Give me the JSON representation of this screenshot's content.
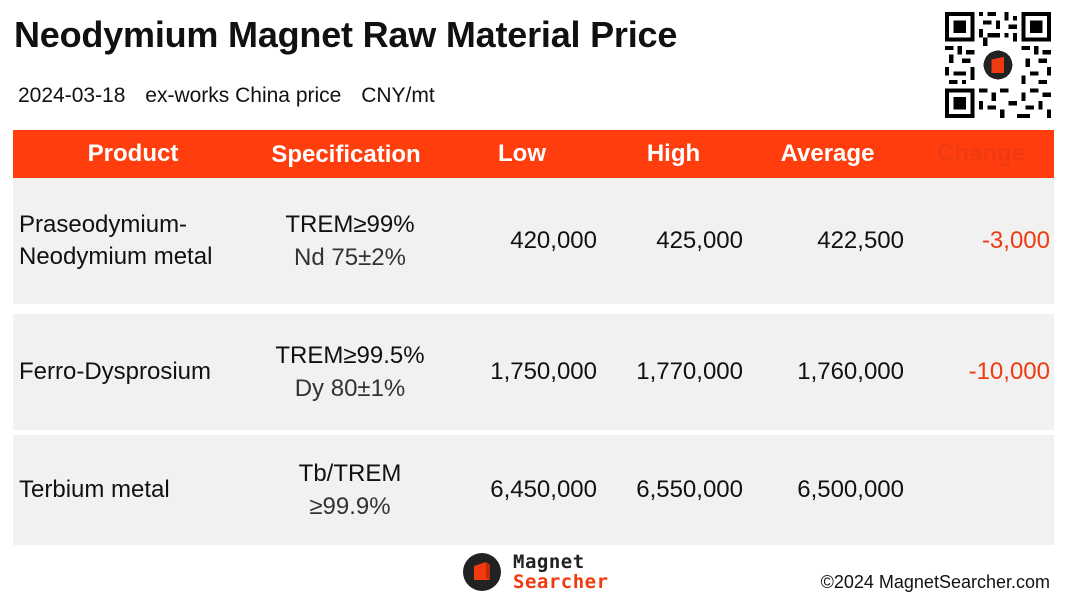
{
  "header": {
    "title": "Neodymium Magnet Raw Material Price",
    "date": "2024-03-18",
    "basis": "ex-works China price",
    "unit": "CNY/mt"
  },
  "table": {
    "columns": [
      "Product",
      "Specification",
      "Low",
      "High",
      "Average",
      "Change"
    ],
    "rows": [
      {
        "product_line1": "Praseodymium-",
        "product_line2": "Neodymium metal",
        "spec_line1": "TREM≥99%",
        "spec_line2": "Nd 75±2%",
        "low": "420,000",
        "high": "425,000",
        "average": "422,500",
        "change": "-3,000"
      },
      {
        "product_line1": "Ferro-Dysprosium",
        "product_line2": "",
        "spec_line1": "TREM≥99.5%",
        "spec_line2": "Dy 80±1%",
        "low": "1,750,000",
        "high": "1,770,000",
        "average": "1,760,000",
        "change": "-10,000"
      },
      {
        "product_line1": "Terbium metal",
        "product_line2": "",
        "spec_line1": "Tb/TREM",
        "spec_line2": "≥99.9%",
        "low": "6,450,000",
        "high": "6,550,000",
        "average": "6,500,000",
        "change": ""
      }
    ]
  },
  "footer": {
    "brand_line1": "Magnet",
    "brand_line2": "Searcher",
    "copyright": "©2024 MagnetSearcher.com"
  },
  "colors": {
    "header_bg": "#ff3d0d",
    "row_bg": "#f1f1f1",
    "negative_change": "#f03a10"
  },
  "icons": [
    "qr-code-icon",
    "magnet-searcher-logo-icon"
  ]
}
